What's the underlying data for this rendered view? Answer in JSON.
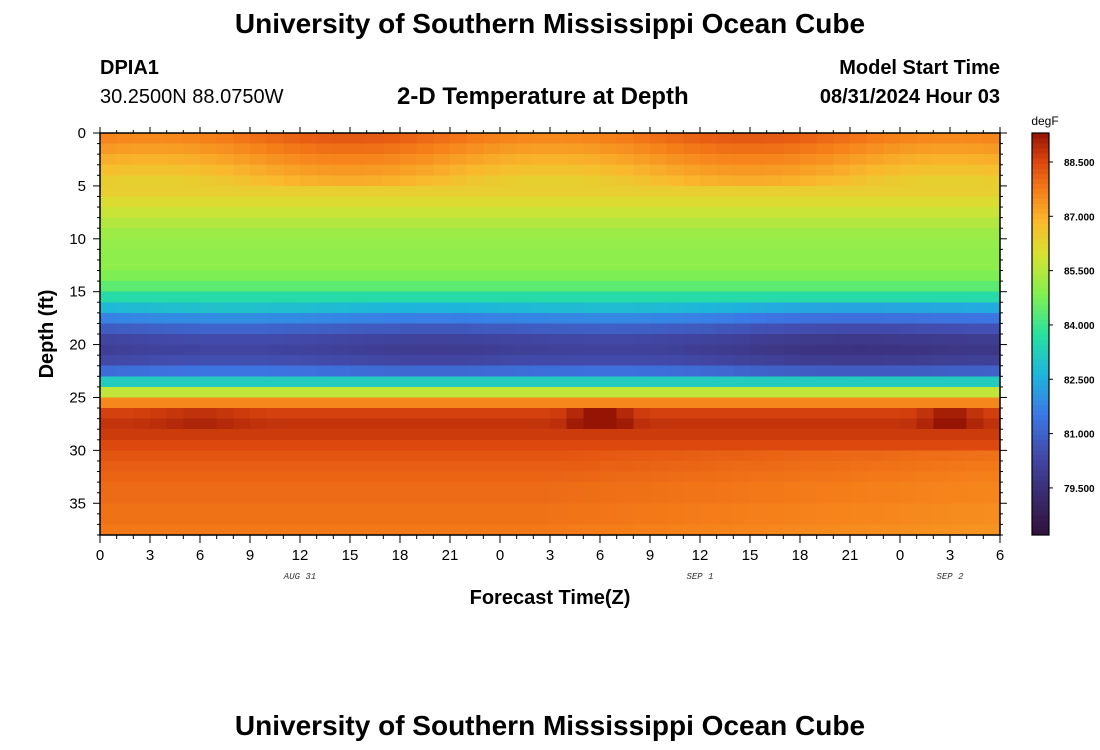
{
  "header": {
    "title": "University of Southern Mississippi Ocean Cube",
    "station_id": "DPIA1",
    "station_coords": "30.2500N  88.0750W",
    "subtitle": "2-D Temperature at Depth",
    "model_start_label": "Model Start Time",
    "model_start_value": "08/31/2024 Hour 03"
  },
  "footer": {
    "title": "University of Southern Mississippi Ocean Cube"
  },
  "chart_data": {
    "type": "heatmap",
    "title": "2-D Temperature at Depth",
    "xlabel": "Forecast Time(Z)",
    "ylabel": "Depth (ft)",
    "x_hours": [
      0,
      54
    ],
    "x_tick_labels": [
      "0",
      "3",
      "6",
      "9",
      "12",
      "15",
      "18",
      "21",
      "0",
      "3",
      "6",
      "9",
      "12",
      "15",
      "18",
      "21",
      "0",
      "3",
      "6"
    ],
    "x_date_labels": [
      {
        "text": "AUG 31",
        "hour": 12
      },
      {
        "text": "SEP 1",
        "hour": 36
      },
      {
        "text": "SEP 2",
        "hour": 51
      }
    ],
    "ylim": [
      0,
      38
    ],
    "y_ticks": [
      0,
      5,
      10,
      15,
      20,
      25,
      30,
      35
    ],
    "colorbar": {
      "unit": "degF",
      "range": [
        78.2,
        89.3
      ],
      "ticks": [
        "88.500",
        "87.000",
        "85.500",
        "84.000",
        "82.500",
        "81.000",
        "79.500"
      ],
      "tick_values": [
        88.5,
        87.0,
        85.5,
        84.0,
        82.5,
        81.0,
        79.5
      ]
    },
    "depth_profile": {
      "depth_ft": [
        0,
        1,
        2,
        3,
        4,
        5,
        6,
        7,
        8,
        9,
        10,
        11,
        12,
        13,
        14,
        15,
        16,
        17,
        18,
        19,
        20,
        21,
        22,
        23,
        24,
        25,
        26,
        27,
        28,
        29,
        30,
        31,
        32,
        33,
        34,
        35,
        36,
        37
      ],
      "temp_degF": [
        87.9,
        87.6,
        87.3,
        87.0,
        86.7,
        86.4,
        86.1,
        85.8,
        85.5,
        85.2,
        85.1,
        85.0,
        85.0,
        84.8,
        84.4,
        83.6,
        82.8,
        81.8,
        80.9,
        80.3,
        80.1,
        80.4,
        81.3,
        83.2,
        85.7,
        87.6,
        88.6,
        88.8,
        88.7,
        88.5,
        88.3,
        88.2,
        88.1,
        88.0,
        88.0,
        87.9,
        87.9,
        87.8
      ]
    }
  }
}
